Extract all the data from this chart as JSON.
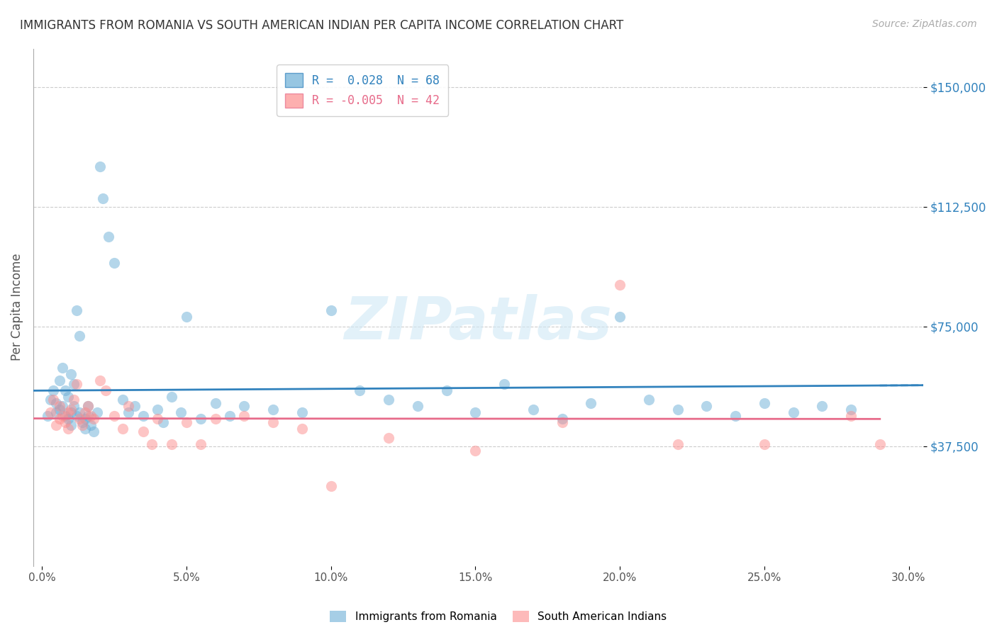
{
  "title": "IMMIGRANTS FROM ROMANIA VS SOUTH AMERICAN INDIAN PER CAPITA INCOME CORRELATION CHART",
  "source": "Source: ZipAtlas.com",
  "ylabel": "Per Capita Income",
  "xlabel_ticks": [
    "0.0%",
    "5.0%",
    "10.0%",
    "15.0%",
    "20.0%",
    "25.0%",
    "30.0%"
  ],
  "xlabel_vals": [
    0.0,
    5.0,
    10.0,
    15.0,
    20.0,
    25.0,
    30.0
  ],
  "ytick_labels": [
    "$37,500",
    "$75,000",
    "$112,500",
    "$150,000"
  ],
  "ytick_vals": [
    37500,
    75000,
    112500,
    150000
  ],
  "ylim": [
    0,
    162000
  ],
  "xlim": [
    -0.3,
    30.5
  ],
  "legend_entries": [
    {
      "label": "R =  0.028  N = 68",
      "color": "#6baed6"
    },
    {
      "label": "R = -0.005  N = 42",
      "color": "#fd8d8d"
    }
  ],
  "romania_color": "#6baed6",
  "sa_indian_color": "#fd8d8d",
  "romania_line_color": "#3182bd",
  "sa_indian_line_color": "#e76b8a",
  "watermark": "ZIPatlas",
  "romania_R": 0.028,
  "romania_N": 68,
  "sa_indian_R": -0.005,
  "sa_indian_N": 42,
  "romania_points": [
    [
      0.2,
      47000
    ],
    [
      0.3,
      52000
    ],
    [
      0.4,
      55000
    ],
    [
      0.5,
      48000
    ],
    [
      0.5,
      51000
    ],
    [
      0.6,
      58000
    ],
    [
      0.6,
      49000
    ],
    [
      0.7,
      62000
    ],
    [
      0.7,
      50000
    ],
    [
      0.8,
      55000
    ],
    [
      0.8,
      47000
    ],
    [
      0.9,
      53000
    ],
    [
      0.9,
      46000
    ],
    [
      1.0,
      60000
    ],
    [
      1.0,
      48000
    ],
    [
      1.0,
      44000
    ],
    [
      1.1,
      57000
    ],
    [
      1.1,
      50000
    ],
    [
      1.2,
      80000
    ],
    [
      1.2,
      47000
    ],
    [
      1.3,
      72000
    ],
    [
      1.3,
      48000
    ],
    [
      1.4,
      45000
    ],
    [
      1.5,
      46000
    ],
    [
      1.5,
      43000
    ],
    [
      1.6,
      50000
    ],
    [
      1.6,
      47000
    ],
    [
      1.7,
      44000
    ],
    [
      1.8,
      42000
    ],
    [
      1.9,
      48000
    ],
    [
      2.0,
      125000
    ],
    [
      2.1,
      115000
    ],
    [
      2.3,
      103000
    ],
    [
      2.5,
      95000
    ],
    [
      2.8,
      52000
    ],
    [
      3.0,
      48000
    ],
    [
      3.2,
      50000
    ],
    [
      3.5,
      47000
    ],
    [
      4.0,
      49000
    ],
    [
      4.2,
      45000
    ],
    [
      4.5,
      53000
    ],
    [
      4.8,
      48000
    ],
    [
      5.0,
      78000
    ],
    [
      5.5,
      46000
    ],
    [
      6.0,
      51000
    ],
    [
      6.5,
      47000
    ],
    [
      7.0,
      50000
    ],
    [
      8.0,
      49000
    ],
    [
      9.0,
      48000
    ],
    [
      10.0,
      80000
    ],
    [
      11.0,
      55000
    ],
    [
      12.0,
      52000
    ],
    [
      13.0,
      50000
    ],
    [
      14.0,
      55000
    ],
    [
      15.0,
      48000
    ],
    [
      16.0,
      57000
    ],
    [
      17.0,
      49000
    ],
    [
      18.0,
      46000
    ],
    [
      19.0,
      51000
    ],
    [
      20.0,
      78000
    ],
    [
      21.0,
      52000
    ],
    [
      22.0,
      49000
    ],
    [
      23.0,
      50000
    ],
    [
      24.0,
      47000
    ],
    [
      25.0,
      51000
    ],
    [
      26.0,
      48000
    ],
    [
      27.0,
      50000
    ],
    [
      28.0,
      49000
    ]
  ],
  "sa_indian_points": [
    [
      0.3,
      48000
    ],
    [
      0.4,
      52000
    ],
    [
      0.5,
      44000
    ],
    [
      0.6,
      46000
    ],
    [
      0.6,
      50000
    ],
    [
      0.7,
      47000
    ],
    [
      0.8,
      45000
    ],
    [
      0.9,
      48000
    ],
    [
      0.9,
      43000
    ],
    [
      1.0,
      49000
    ],
    [
      1.1,
      52000
    ],
    [
      1.2,
      57000
    ],
    [
      1.3,
      46000
    ],
    [
      1.4,
      44000
    ],
    [
      1.5,
      48000
    ],
    [
      1.6,
      50000
    ],
    [
      1.7,
      47000
    ],
    [
      1.8,
      46000
    ],
    [
      2.0,
      58000
    ],
    [
      2.2,
      55000
    ],
    [
      2.5,
      47000
    ],
    [
      2.8,
      43000
    ],
    [
      3.0,
      50000
    ],
    [
      3.5,
      42000
    ],
    [
      3.8,
      38000
    ],
    [
      4.0,
      46000
    ],
    [
      4.5,
      38000
    ],
    [
      5.0,
      45000
    ],
    [
      5.5,
      38000
    ],
    [
      6.0,
      46000
    ],
    [
      7.0,
      47000
    ],
    [
      8.0,
      45000
    ],
    [
      9.0,
      43000
    ],
    [
      10.0,
      25000
    ],
    [
      12.0,
      40000
    ],
    [
      15.0,
      36000
    ],
    [
      18.0,
      45000
    ],
    [
      20.0,
      88000
    ],
    [
      22.0,
      38000
    ],
    [
      25.0,
      38000
    ],
    [
      28.0,
      47000
    ],
    [
      29.0,
      38000
    ]
  ],
  "background_color": "#ffffff",
  "grid_color": "#cccccc",
  "title_color": "#333333",
  "axis_label_color": "#555555",
  "ytick_color": "#3182bd",
  "xtick_color": "#555555",
  "marker_size": 120,
  "marker_alpha": 0.5,
  "legend_box_color": "#6baed6",
  "legend_text_color_r": "#3182bd",
  "legend_text_color_n": "#333333"
}
